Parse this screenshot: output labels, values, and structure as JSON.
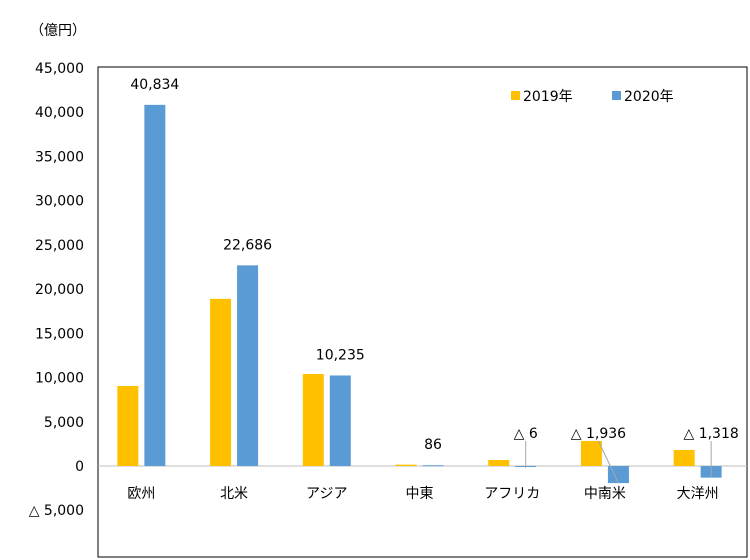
{
  "chart_data": {
    "type": "bar",
    "unit_label": "（億円）",
    "categories": [
      "欧州",
      "北米",
      "アジア",
      "中東",
      "アフリカ",
      "中南米",
      "大洋州"
    ],
    "series": [
      {
        "name": "2019年",
        "color": "#FFC000",
        "values": [
          9050,
          18900,
          10400,
          150,
          680,
          2830,
          1810
        ]
      },
      {
        "name": "2020年",
        "color": "#5B9BD5",
        "values": [
          40834,
          22686,
          10235,
          86,
          -6,
          -1936,
          -1318
        ]
      }
    ],
    "data_labels_2020": [
      "40,834",
      "22,686",
      "10,235",
      "86",
      "△ 6",
      "△ 1,936",
      "△ 1,318"
    ],
    "y_ticks": [
      45000,
      40000,
      35000,
      30000,
      25000,
      20000,
      15000,
      10000,
      5000,
      0,
      -5000
    ],
    "y_tick_labels": [
      "45,000",
      "40,000",
      "35,000",
      "30,000",
      "25,000",
      "20,000",
      "15,000",
      "10,000",
      "5,000",
      "0",
      "△ 5,000"
    ],
    "ylim": [
      -5000,
      45000
    ],
    "legend_position": "top-right",
    "grid": false
  }
}
